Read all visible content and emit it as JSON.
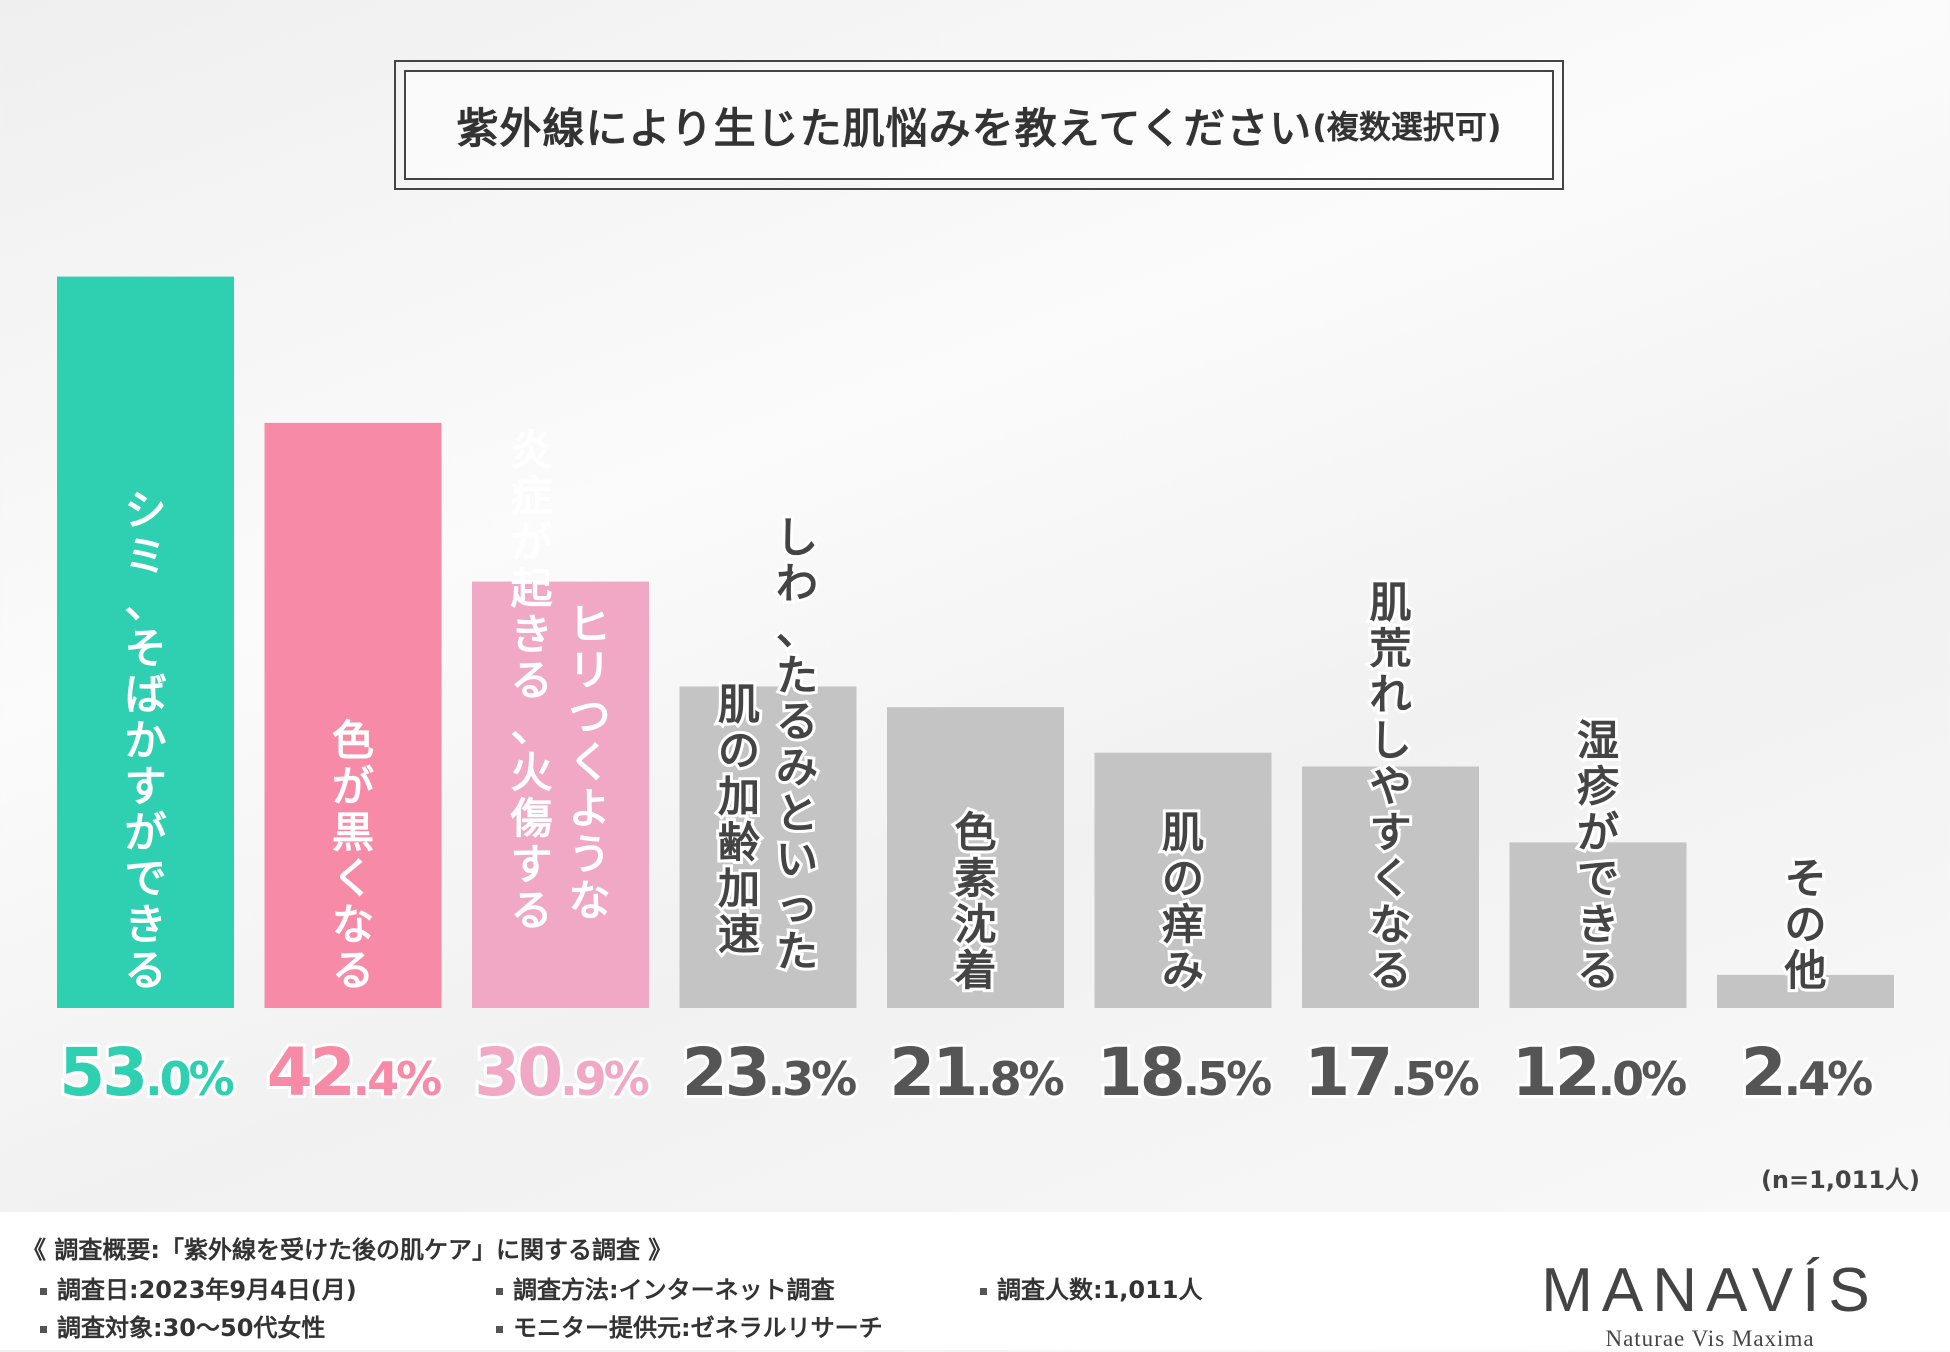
{
  "chart_data": {
    "type": "bar",
    "title": "紫外線により生じた肌悩みを教えてください",
    "title_suffix": "(複数選択可)",
    "categories": [
      "シミ、そばかすができる",
      "色が黒くなる",
      "ヒリつくような炎症が起きる、火傷する",
      "しわ、たるみといった肌の加齢加速",
      "色素沈着",
      "肌の痒み",
      "肌荒れしやすくなる",
      "湿疹ができる",
      "その他"
    ],
    "category_lines": [
      [
        "シミ、そばかすができる"
      ],
      [
        "色が黒くなる"
      ],
      [
        "ヒリつくような",
        "炎症が起きる、火傷する"
      ],
      [
        "しわ、たるみといった",
        "肌の加齢加速"
      ],
      [
        "色素沈着"
      ],
      [
        "肌の痒み"
      ],
      [
        "肌荒れしやすくなる"
      ],
      [
        "湿疹ができる"
      ],
      [
        "その他"
      ]
    ],
    "values": [
      53.0,
      42.4,
      30.9,
      23.3,
      21.8,
      18.5,
      17.5,
      12.0,
      2.4
    ],
    "value_labels": [
      "53.0%",
      "42.4%",
      "30.9%",
      "23.3%",
      "21.8%",
      "18.5%",
      "17.5%",
      "12.0%",
      "2.4%"
    ],
    "ylim": [
      0,
      60
    ],
    "xlabel": "",
    "ylabel": "",
    "grid": false,
    "colors": [
      "#2fcfb2",
      "#f78ba7",
      "#f0a8c4",
      "#c4c4c4",
      "#c4c4c4",
      "#c4c4c4",
      "#c4c4c4",
      "#c4c4c4",
      "#c4c4c4"
    ],
    "label_colors": [
      "#2fcfb2",
      "#f78ba7",
      "#f0a8c4",
      "#555555",
      "#555555",
      "#555555",
      "#555555",
      "#555555",
      "#555555"
    ],
    "sample_size": "(n=1,011人)"
  },
  "footer": {
    "heading": "《 調査概要:「紫外線を受けた後の肌ケア」に関する調査 》",
    "items": {
      "date": "調査日:2023年9月4日(月)",
      "method": "調査方法:インターネット調査",
      "count": "調査人数:1,011人",
      "target": "調査対象:30〜50代女性",
      "provider": "モニター提供元:ゼネラルリサーチ"
    }
  },
  "logo": {
    "brand": "MANAVÍS",
    "tagline": "Naturae Vis Maxima"
  }
}
